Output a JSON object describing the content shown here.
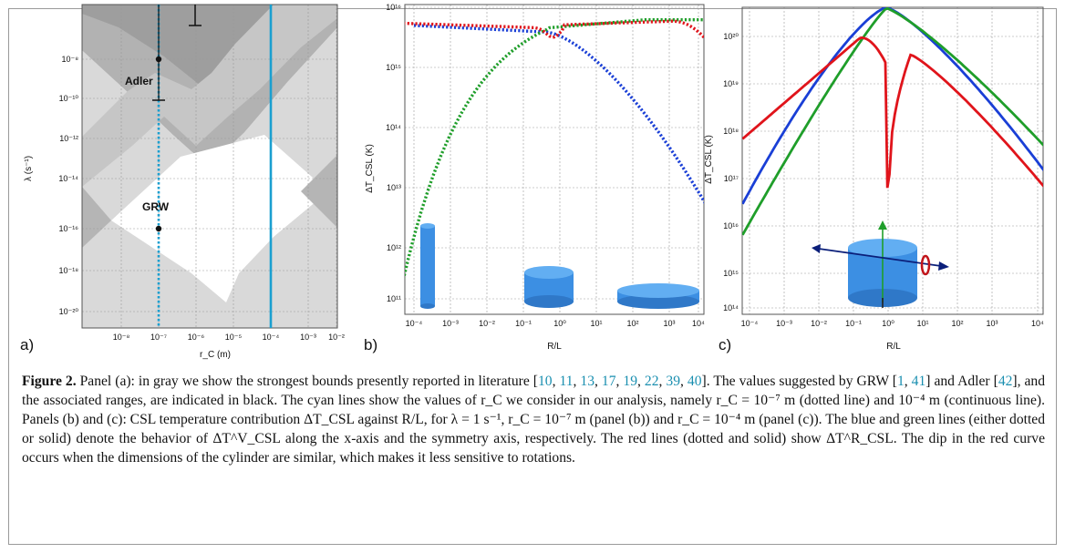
{
  "panels": {
    "a": {
      "label": "a)",
      "xlabel": "r_C (m)",
      "ylabel": "λ (s⁻¹)",
      "xticks": [
        "10⁻⁸",
        "10⁻⁷",
        "10⁻⁶",
        "10⁻⁵",
        "10⁻⁴",
        "10⁻³",
        "10⁻²"
      ],
      "yticks": [
        "10⁻⁸",
        "10⁻¹⁰",
        "10⁻¹²",
        "10⁻¹⁴",
        "10⁻¹⁶",
        "10⁻¹⁸",
        "10⁻²⁰"
      ],
      "annotations": [
        "Adler",
        "GRW"
      ]
    },
    "b": {
      "label": "b)",
      "xlabel": "R/L",
      "ylabel": "ΔT_CSL (K)",
      "xticks": [
        "10⁻⁴",
        "10⁻³",
        "10⁻²",
        "10⁻¹",
        "10⁰",
        "10¹",
        "10²",
        "10³",
        "10⁴"
      ],
      "yticks": [
        "10¹⁶",
        "10¹⁵",
        "10¹⁴",
        "10¹³",
        "10¹²",
        "10¹¹"
      ]
    },
    "c": {
      "label": "c)",
      "xlabel": "R/L",
      "ylabel": "ΔT_CSL (K)",
      "xticks": [
        "10⁻⁴",
        "10⁻³",
        "10⁻²",
        "10⁻¹",
        "10⁰",
        "10¹",
        "10²",
        "10³",
        "10⁴"
      ],
      "yticks": [
        "10²⁰",
        "10¹⁹",
        "10¹⁸",
        "10¹⁷",
        "10¹⁶",
        "10¹⁵",
        "10¹⁴"
      ]
    }
  },
  "colors": {
    "blue": "#1a3fd6",
    "green": "#1f9e2a",
    "red": "#e0141b",
    "cyan": "#1a9fd0",
    "cylinder": "#3c8fe3"
  },
  "caption": {
    "label": "Figure 2.",
    "segments": [
      {
        "t": " Panel (a): in gray we show the strongest bounds presently reported in literature ["
      },
      {
        "t": "10",
        "c": 1
      },
      {
        "t": ", "
      },
      {
        "t": "11",
        "c": 1
      },
      {
        "t": ", "
      },
      {
        "t": "13",
        "c": 1
      },
      {
        "t": ", "
      },
      {
        "t": "17",
        "c": 1
      },
      {
        "t": ", "
      },
      {
        "t": "19",
        "c": 1
      },
      {
        "t": ", "
      },
      {
        "t": "22",
        "c": 1
      },
      {
        "t": ", "
      },
      {
        "t": "39",
        "c": 1
      },
      {
        "t": ", "
      },
      {
        "t": "40",
        "c": 1
      },
      {
        "t": "]. The values suggested by GRW ["
      },
      {
        "t": "1",
        "c": 1
      },
      {
        "t": ", "
      },
      {
        "t": "41",
        "c": 1
      },
      {
        "t": "] and Adler ["
      },
      {
        "t": "42",
        "c": 1
      },
      {
        "t": "], and the associated ranges, are indicated in black. The cyan lines show the values of r_C we consider in our analysis, namely r_C = 10⁻⁷ m (dotted line) and 10⁻⁴ m (continuous line). Panels (b) and (c): CSL temperature contribution ΔT_CSL against R/L, for λ = 1 s⁻¹, r_C = 10⁻⁷ m (panel (b)) and r_C = 10⁻⁴ m (panel (c)). The blue and green lines (either dotted or solid) denote the behavior of ΔT^V_CSL along the x-axis and the symmetry axis, respectively. The red lines (dotted and solid) show ΔT^R_CSL. The dip in the red curve occurs when the dimensions of the cylinder are similar, which makes it less sensitive to rotations."
      }
    ]
  }
}
